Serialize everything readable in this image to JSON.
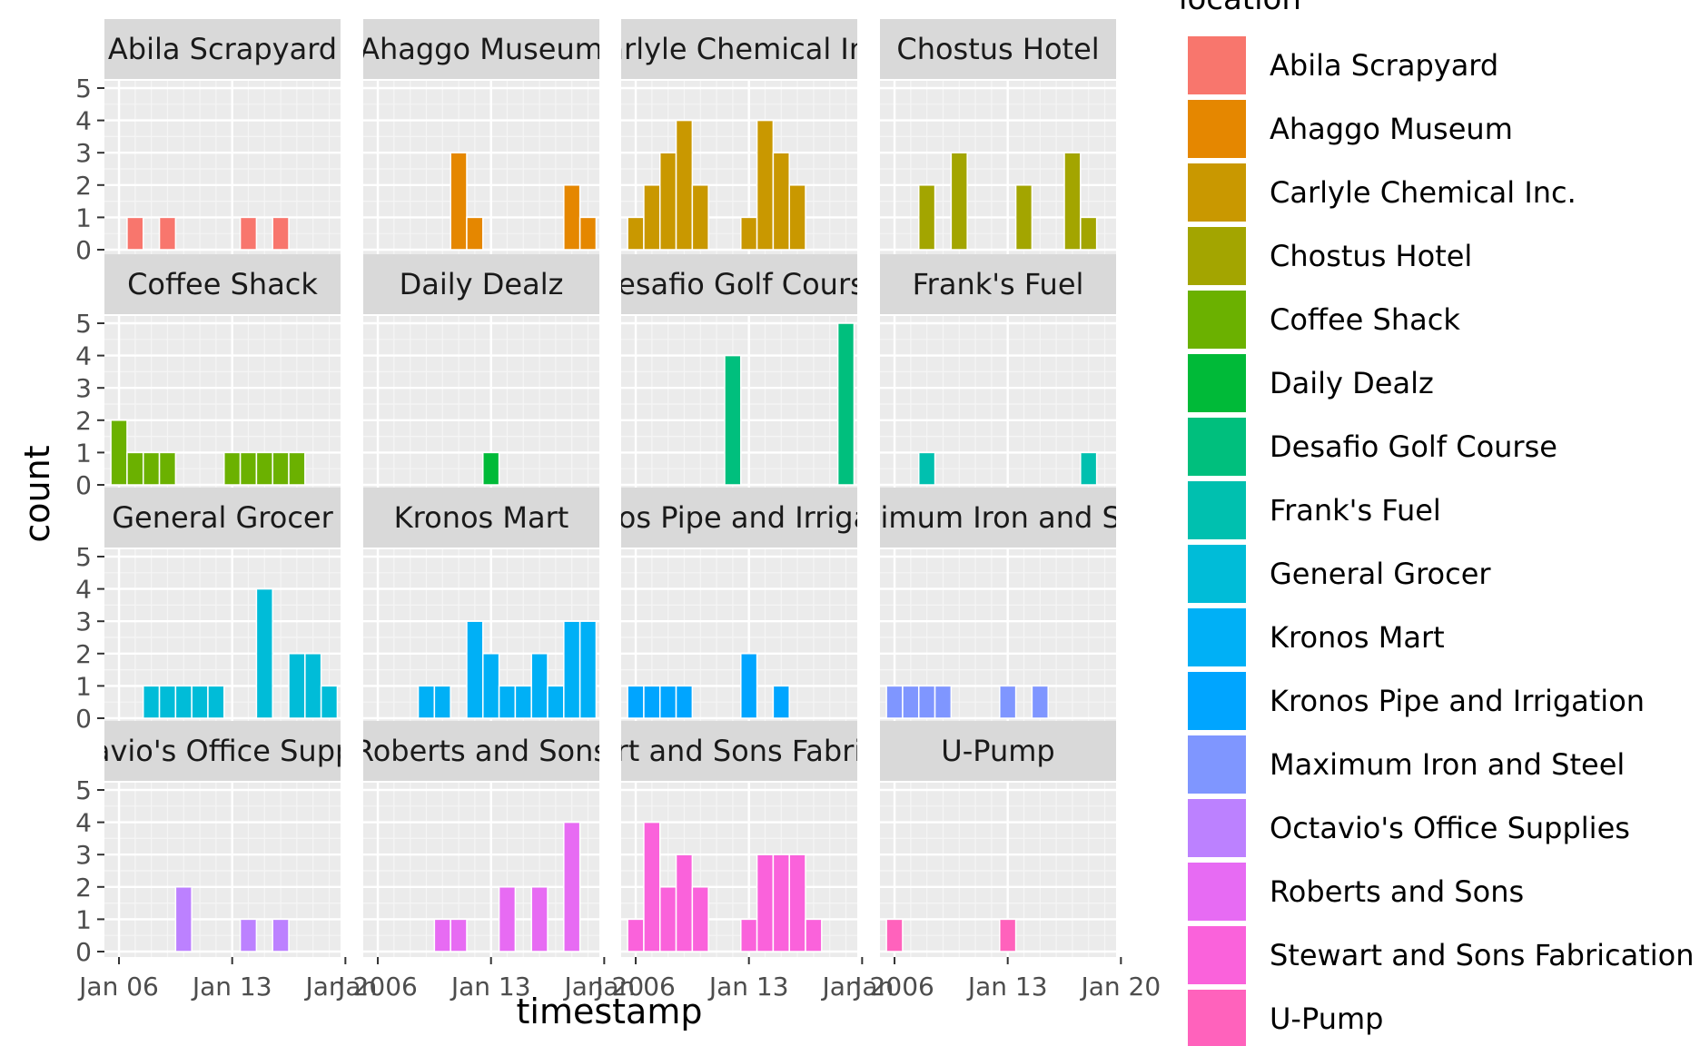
{
  "chart_data": {
    "type": "bar",
    "facet_by": "location",
    "xlabel": "timestamp",
    "ylabel": "count",
    "x_tick_labels": [
      "Jan 06",
      "Jan 13",
      "Jan 20"
    ],
    "x_ticks": [
      0,
      7,
      14
    ],
    "xlim": [
      -0.9,
      13.7
    ],
    "ylim": [
      0,
      5
    ],
    "y_ticks": [
      0,
      1,
      2,
      3,
      4,
      5
    ],
    "bin_width_days": 1,
    "legend": {
      "title": "location",
      "position": "right"
    },
    "grid": true,
    "facets": [
      {
        "name": "Abila Scrapyard",
        "color": "#F8766D",
        "bars": [
          [
            1,
            1
          ],
          [
            3,
            1
          ],
          [
            8,
            1
          ],
          [
            10,
            1
          ]
        ]
      },
      {
        "name": "Ahaggo Museum",
        "color": "#E58700",
        "bars": [
          [
            5,
            3
          ],
          [
            6,
            1
          ],
          [
            12,
            2
          ],
          [
            13,
            1
          ]
        ]
      },
      {
        "name": "Carlyle Chemical Inc.",
        "color": "#C99800",
        "bars": [
          [
            0,
            1
          ],
          [
            1,
            2
          ],
          [
            2,
            3
          ],
          [
            3,
            4
          ],
          [
            4,
            2
          ],
          [
            7,
            1
          ],
          [
            8,
            4
          ],
          [
            9,
            3
          ],
          [
            10,
            2
          ]
        ]
      },
      {
        "name": "Chostus Hotel",
        "color": "#A3A500",
        "bars": [
          [
            2,
            2
          ],
          [
            4,
            3
          ],
          [
            8,
            2
          ],
          [
            11,
            3
          ],
          [
            12,
            1
          ]
        ]
      },
      {
        "name": "Coffee Shack",
        "color": "#6BB100",
        "bars": [
          [
            0,
            2
          ],
          [
            1,
            1
          ],
          [
            2,
            1
          ],
          [
            3,
            1
          ],
          [
            7,
            1
          ],
          [
            8,
            1
          ],
          [
            9,
            1
          ],
          [
            10,
            1
          ],
          [
            11,
            1
          ]
        ]
      },
      {
        "name": "Daily Dealz",
        "color": "#00BA38",
        "bars": [
          [
            7,
            1
          ]
        ]
      },
      {
        "name": "Desafio Golf Course",
        "color": "#00BF7D",
        "bars": [
          [
            6,
            4
          ],
          [
            13,
            5
          ]
        ]
      },
      {
        "name": "Frank's Fuel",
        "color": "#00C0AF",
        "bars": [
          [
            2,
            1
          ],
          [
            12,
            1
          ]
        ]
      },
      {
        "name": "General Grocer",
        "color": "#00BCD8",
        "bars": [
          [
            2,
            1
          ],
          [
            3,
            1
          ],
          [
            4,
            1
          ],
          [
            5,
            1
          ],
          [
            6,
            1
          ],
          [
            9,
            4
          ],
          [
            11,
            2
          ],
          [
            12,
            2
          ],
          [
            13,
            1
          ]
        ]
      },
      {
        "name": "Kronos Mart",
        "color": "#00B0F6",
        "bars": [
          [
            3,
            1
          ],
          [
            4,
            1
          ],
          [
            6,
            3
          ],
          [
            7,
            2
          ],
          [
            8,
            1
          ],
          [
            9,
            1
          ],
          [
            10,
            2
          ],
          [
            11,
            1
          ],
          [
            12,
            3
          ],
          [
            13,
            3
          ]
        ]
      },
      {
        "name": "Kronos Pipe and Irrigation",
        "color": "#00A5FF",
        "bars": [
          [
            0,
            1
          ],
          [
            1,
            1
          ],
          [
            2,
            1
          ],
          [
            3,
            1
          ],
          [
            7,
            2
          ],
          [
            9,
            1
          ]
        ]
      },
      {
        "name": "Maximum Iron and Steel",
        "color": "#7F96FF",
        "bars": [
          [
            0,
            1
          ],
          [
            1,
            1
          ],
          [
            2,
            1
          ],
          [
            3,
            1
          ],
          [
            7,
            1
          ],
          [
            9,
            1
          ]
        ]
      },
      {
        "name": "Octavio's Office Supplies",
        "color": "#BC81FF",
        "bars": [
          [
            4,
            2
          ],
          [
            8,
            1
          ],
          [
            10,
            1
          ]
        ]
      },
      {
        "name": "Roberts and Sons",
        "color": "#E76BF3",
        "bars": [
          [
            4,
            1
          ],
          [
            5,
            1
          ],
          [
            8,
            2
          ],
          [
            10,
            2
          ],
          [
            12,
            4
          ]
        ]
      },
      {
        "name": "Stewart and Sons Fabrication",
        "color": "#FA62DB",
        "bars": [
          [
            0,
            1
          ],
          [
            1,
            4
          ],
          [
            2,
            2
          ],
          [
            3,
            3
          ],
          [
            4,
            2
          ],
          [
            7,
            1
          ],
          [
            8,
            3
          ],
          [
            9,
            3
          ],
          [
            10,
            3
          ],
          [
            11,
            1
          ]
        ]
      },
      {
        "name": "U-Pump",
        "color": "#FF62BC",
        "bars": [
          [
            0,
            1
          ],
          [
            7,
            1
          ]
        ]
      }
    ]
  }
}
